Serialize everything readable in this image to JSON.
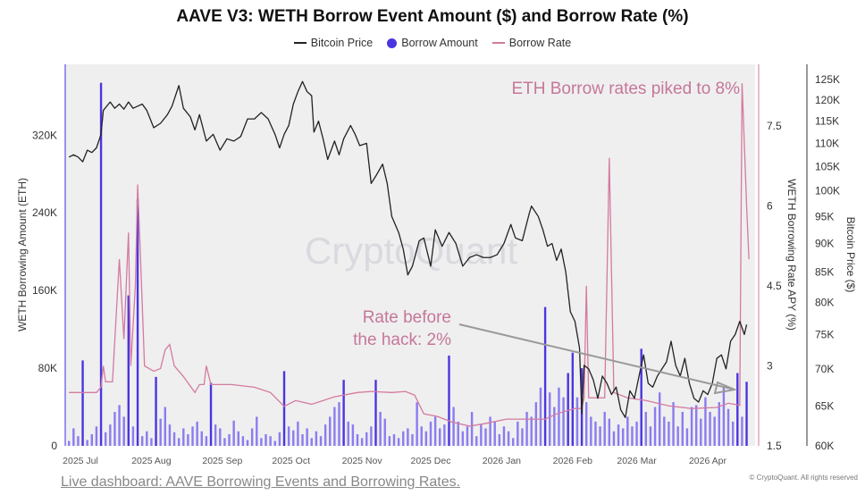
{
  "chart_data": {
    "type": "bar+line",
    "title": "AAVE V3: WETH Borrow Event Amount ($) and Borrow Rate (%)",
    "legend": [
      {
        "name": "Bitcoin Price",
        "color": "#222222",
        "marker": "line"
      },
      {
        "name": "Borrow Amount",
        "color": "#4a36e0",
        "marker": "dot"
      },
      {
        "name": "Borrow Rate",
        "color": "#d47aa0",
        "marker": "line"
      }
    ],
    "legend_position": "top-center",
    "x_ticks": [
      "2025 Jul",
      "2025 Aug",
      "2025 Sep",
      "2025 Oct",
      "2025 Nov",
      "2025 Dec",
      "2026 Jan",
      "2026 Feb",
      "2026 Mar",
      "2026 Apr"
    ],
    "x_tick_dates": [
      "2025-07-01",
      "2025-08-01",
      "2025-09-01",
      "2025-10-01",
      "2025-11-01",
      "2025-12-01",
      "2026-01-01",
      "2026-02-01",
      "2026-03-01",
      "2026-04-01"
    ],
    "y_left": {
      "label": "WETH Borrowing Amount (ETH)",
      "ticks": [
        0,
        80000,
        160000,
        240000,
        320000
      ],
      "tick_labels": [
        "0",
        "80K",
        "160K",
        "240K",
        "320K"
      ],
      "range": [
        0,
        393000
      ]
    },
    "y_right1": {
      "label": "WETH Borrowing Rate APY (%)",
      "ticks": [
        1.5,
        3,
        4.5,
        6,
        7.5
      ],
      "tick_labels": [
        "1.5",
        "3",
        "4.5",
        "6",
        "7.5"
      ],
      "range": [
        1.5,
        8.7
      ]
    },
    "y_right2": {
      "label": "Bitcoin Price ($)",
      "scale": "log",
      "ticks": [
        60000,
        65000,
        70000,
        75000,
        80000,
        85000,
        90000,
        95000,
        100000,
        105000,
        110000,
        115000,
        120000,
        125000
      ],
      "tick_labels": [
        "60K",
        "65K",
        "70K",
        "75K",
        "80K",
        "85K",
        "90K",
        "95K",
        "100K",
        "105K",
        "110K",
        "115K",
        "120K",
        "125K"
      ],
      "range": [
        60000,
        125000
      ]
    },
    "borrow_amount": {
      "start_date": "2025-06-26",
      "step_days": 2,
      "unit": "thousand ETH",
      "values": [
        5,
        18,
        10,
        88,
        6,
        12,
        20,
        374,
        14,
        22,
        35,
        42,
        30,
        155,
        20,
        254,
        10,
        15,
        8,
        71,
        28,
        40,
        22,
        14,
        8,
        18,
        12,
        20,
        25,
        15,
        10,
        65,
        22,
        18,
        8,
        12,
        26,
        15,
        10,
        6,
        18,
        30,
        8,
        12,
        10,
        5,
        14,
        77,
        20,
        16,
        25,
        12,
        18,
        8,
        15,
        10,
        22,
        30,
        40,
        45,
        68,
        25,
        22,
        12,
        8,
        14,
        20,
        68,
        35,
        28,
        10,
        12,
        8,
        15,
        18,
        12,
        45,
        20,
        15,
        25,
        30,
        18,
        22,
        93,
        40,
        25,
        15,
        20,
        35,
        10,
        22,
        18,
        30,
        25,
        12,
        20,
        15,
        8,
        25,
        18,
        35,
        30,
        45,
        60,
        143,
        55,
        40,
        60,
        50,
        75,
        96,
        50,
        80,
        45,
        30,
        25,
        20,
        35,
        28,
        15,
        22,
        18,
        30,
        20,
        25,
        100,
        35,
        20,
        40,
        55,
        30,
        25,
        45,
        20,
        35,
        18,
        40,
        42,
        28,
        50,
        35,
        30,
        45,
        60,
        38,
        25,
        75,
        30,
        66
      ]
    },
    "bitcoin_price": [
      [
        "2025-06-26",
        107
      ],
      [
        "2025-06-28",
        107.5
      ],
      [
        "2025-06-30",
        107
      ],
      [
        "2025-07-02",
        106
      ],
      [
        "2025-07-04",
        108.5
      ],
      [
        "2025-07-06",
        108
      ],
      [
        "2025-07-08",
        109
      ],
      [
        "2025-07-10",
        112
      ],
      [
        "2025-07-11",
        117.5
      ],
      [
        "2025-07-14",
        119.5
      ],
      [
        "2025-07-16",
        118
      ],
      [
        "2025-07-18",
        119
      ],
      [
        "2025-07-20",
        117.8
      ],
      [
        "2025-07-22",
        119.5
      ],
      [
        "2025-07-24",
        118
      ],
      [
        "2025-07-26",
        118.5
      ],
      [
        "2025-07-28",
        119
      ],
      [
        "2025-07-30",
        117.5
      ],
      [
        "2025-08-02",
        113.5
      ],
      [
        "2025-08-05",
        114.5
      ],
      [
        "2025-08-08",
        116.5
      ],
      [
        "2025-08-10",
        118.5
      ],
      [
        "2025-08-13",
        123.5
      ],
      [
        "2025-08-15",
        118
      ],
      [
        "2025-08-18",
        116
      ],
      [
        "2025-08-20",
        113
      ],
      [
        "2025-08-22",
        116.5
      ],
      [
        "2025-08-25",
        110.5
      ],
      [
        "2025-08-28",
        112
      ],
      [
        "2025-08-31",
        108.5
      ],
      [
        "2025-09-03",
        111
      ],
      [
        "2025-09-06",
        110.5
      ],
      [
        "2025-09-09",
        111.5
      ],
      [
        "2025-09-12",
        115.5
      ],
      [
        "2025-09-15",
        115.5
      ],
      [
        "2025-09-18",
        117
      ],
      [
        "2025-09-21",
        115.5
      ],
      [
        "2025-09-24",
        112
      ],
      [
        "2025-09-26",
        109
      ],
      [
        "2025-09-28",
        112
      ],
      [
        "2025-09-30",
        114
      ],
      [
        "2025-10-02",
        119
      ],
      [
        "2025-10-04",
        122
      ],
      [
        "2025-10-06",
        124.5
      ],
      [
        "2025-10-08",
        122
      ],
      [
        "2025-10-10",
        121
      ],
      [
        "2025-10-11",
        112.5
      ],
      [
        "2025-10-13",
        115
      ],
      [
        "2025-10-15",
        111
      ],
      [
        "2025-10-17",
        106.5
      ],
      [
        "2025-10-20",
        110.5
      ],
      [
        "2025-10-22",
        107.5
      ],
      [
        "2025-10-24",
        111
      ],
      [
        "2025-10-27",
        114
      ],
      [
        "2025-10-29",
        112
      ],
      [
        "2025-10-31",
        109.5
      ],
      [
        "2025-11-03",
        110
      ],
      [
        "2025-11-05",
        101.5
      ],
      [
        "2025-11-07",
        103
      ],
      [
        "2025-11-10",
        105.5
      ],
      [
        "2025-11-12",
        101.5
      ],
      [
        "2025-11-14",
        95
      ],
      [
        "2025-11-17",
        92
      ],
      [
        "2025-11-19",
        89
      ],
      [
        "2025-11-21",
        84.5
      ],
      [
        "2025-11-23",
        86
      ],
      [
        "2025-11-26",
        90.5
      ],
      [
        "2025-11-28",
        91
      ],
      [
        "2025-12-01",
        86
      ],
      [
        "2025-12-03",
        92.5
      ],
      [
        "2025-12-06",
        89.5
      ],
      [
        "2025-12-09",
        92
      ],
      [
        "2025-12-12",
        90
      ],
      [
        "2025-12-15",
        86
      ],
      [
        "2025-12-18",
        87.5
      ],
      [
        "2025-12-21",
        88
      ],
      [
        "2025-12-24",
        87.5
      ],
      [
        "2025-12-27",
        87.5
      ],
      [
        "2025-12-30",
        88
      ],
      [
        "2026-01-02",
        90
      ],
      [
        "2026-01-05",
        93.5
      ],
      [
        "2026-01-07",
        91
      ],
      [
        "2026-01-10",
        90.5
      ],
      [
        "2026-01-13",
        95.5
      ],
      [
        "2026-01-14",
        97
      ],
      [
        "2026-01-17",
        95
      ],
      [
        "2026-01-19",
        92.5
      ],
      [
        "2026-01-21",
        89.5
      ],
      [
        "2026-01-23",
        90
      ],
      [
        "2026-01-25",
        87
      ],
      [
        "2026-01-27",
        89
      ],
      [
        "2026-01-29",
        85
      ],
      [
        "2026-01-31",
        78.5
      ],
      [
        "2026-02-02",
        77
      ],
      [
        "2026-02-04",
        73
      ],
      [
        "2026-02-05",
        64
      ],
      [
        "2026-02-06",
        70.5
      ],
      [
        "2026-02-08",
        70
      ],
      [
        "2026-02-10",
        68.5
      ],
      [
        "2026-02-12",
        66
      ],
      [
        "2026-02-14",
        69
      ],
      [
        "2026-02-16",
        68
      ],
      [
        "2026-02-18",
        66.5
      ],
      [
        "2026-02-20",
        67.5
      ],
      [
        "2026-02-22",
        64.5
      ],
      [
        "2026-02-24",
        63.5
      ],
      [
        "2026-02-26",
        67
      ],
      [
        "2026-02-28",
        66
      ],
      [
        "2026-03-02",
        69
      ],
      [
        "2026-03-04",
        72
      ],
      [
        "2026-03-06",
        68
      ],
      [
        "2026-03-08",
        67.5
      ],
      [
        "2026-03-10",
        69
      ],
      [
        "2026-03-12",
        70
      ],
      [
        "2026-03-14",
        71
      ],
      [
        "2026-03-16",
        74
      ],
      [
        "2026-03-18",
        70.5
      ],
      [
        "2026-03-20",
        69
      ],
      [
        "2026-03-22",
        71.5
      ],
      [
        "2026-03-24",
        68
      ],
      [
        "2026-03-26",
        66
      ],
      [
        "2026-03-28",
        65.5
      ],
      [
        "2026-03-30",
        67
      ],
      [
        "2026-04-01",
        66.5
      ],
      [
        "2026-04-03",
        68
      ],
      [
        "2026-04-05",
        71.5
      ],
      [
        "2026-04-07",
        72
      ],
      [
        "2026-04-09",
        70
      ],
      [
        "2026-04-11",
        74
      ],
      [
        "2026-04-13",
        75
      ],
      [
        "2026-04-15",
        77
      ],
      [
        "2026-04-17",
        75
      ],
      [
        "2026-04-18",
        76.5
      ]
    ],
    "borrow_rate": [
      [
        "2025-06-26",
        2.5
      ],
      [
        "2025-07-08",
        2.5
      ],
      [
        "2025-07-10",
        2.6
      ],
      [
        "2025-07-11",
        3.0
      ],
      [
        "2025-07-12",
        2.7
      ],
      [
        "2025-07-15",
        2.7
      ],
      [
        "2025-07-18",
        5.0
      ],
      [
        "2025-07-20",
        3.5
      ],
      [
        "2025-07-22",
        5.5
      ],
      [
        "2025-07-23",
        3.0
      ],
      [
        "2025-07-25",
        4.5
      ],
      [
        "2025-07-26",
        6.4
      ],
      [
        "2025-07-27",
        5.3
      ],
      [
        "2025-07-29",
        3.0
      ],
      [
        "2025-08-02",
        2.9
      ],
      [
        "2025-08-05",
        2.95
      ],
      [
        "2025-08-07",
        3.3
      ],
      [
        "2025-08-09",
        3.4
      ],
      [
        "2025-08-11",
        3.0
      ],
      [
        "2025-08-15",
        2.8
      ],
      [
        "2025-08-20",
        2.5
      ],
      [
        "2025-08-22",
        2.65
      ],
      [
        "2025-08-24",
        2.65
      ],
      [
        "2025-08-25",
        3.0
      ],
      [
        "2025-08-27",
        2.65
      ],
      [
        "2025-09-05",
        2.65
      ],
      [
        "2025-09-15",
        2.6
      ],
      [
        "2025-09-22",
        2.5
      ],
      [
        "2025-09-28",
        2.24
      ],
      [
        "2025-10-03",
        2.35
      ],
      [
        "2025-10-10",
        2.28
      ],
      [
        "2025-10-20",
        2.42
      ],
      [
        "2025-10-30",
        2.5
      ],
      [
        "2025-11-05",
        2.52
      ],
      [
        "2025-11-14",
        2.5
      ],
      [
        "2025-11-20",
        2.52
      ],
      [
        "2025-11-24",
        2.45
      ],
      [
        "2025-11-28",
        2.1
      ],
      [
        "2025-12-04",
        2.05
      ],
      [
        "2025-12-10",
        1.95
      ],
      [
        "2025-12-18",
        1.87
      ],
      [
        "2025-12-25",
        1.92
      ],
      [
        "2026-01-03",
        2.0
      ],
      [
        "2026-01-12",
        2.0
      ],
      [
        "2026-01-20",
        2.0
      ],
      [
        "2026-01-25",
        2.1
      ],
      [
        "2026-02-02",
        2.2
      ],
      [
        "2026-02-05",
        2.2
      ],
      [
        "2026-02-06",
        2.4
      ],
      [
        "2026-02-07",
        4.5
      ],
      [
        "2026-02-08",
        2.4
      ],
      [
        "2026-02-15",
        2.4
      ],
      [
        "2026-02-17",
        6.9
      ],
      [
        "2026-02-19",
        2.5
      ],
      [
        "2026-02-25",
        2.4
      ],
      [
        "2026-03-05",
        2.35
      ],
      [
        "2026-03-15",
        2.25
      ],
      [
        "2026-03-25",
        2.2
      ],
      [
        "2026-04-05",
        2.22
      ],
      [
        "2026-04-10",
        2.3
      ],
      [
        "2026-04-15",
        2.26
      ],
      [
        "2026-04-16",
        8.3
      ],
      [
        "2026-04-18",
        6.0
      ],
      [
        "2026-04-19",
        5.0
      ]
    ],
    "annotations": [
      {
        "text": "ETH Borrow rates piked to 8%"
      },
      {
        "text_line1": "Rate before",
        "text_line2": "the hack: 2%"
      }
    ],
    "watermark": "CryptoQuant"
  },
  "colors": {
    "bitcoin": "#222222",
    "amount": "#4a36e0",
    "amount_light": "#8a7cf0",
    "rate": "#d47aa0",
    "annotation": "#c5779a",
    "plot_bg": "#efefef",
    "arrow": "#999999"
  },
  "footer": {
    "copyright": "© CryptoQuant. All rights reserved",
    "link_text": "Live dashboard: AAVE Borrowing Events and Borrowing Rates."
  }
}
